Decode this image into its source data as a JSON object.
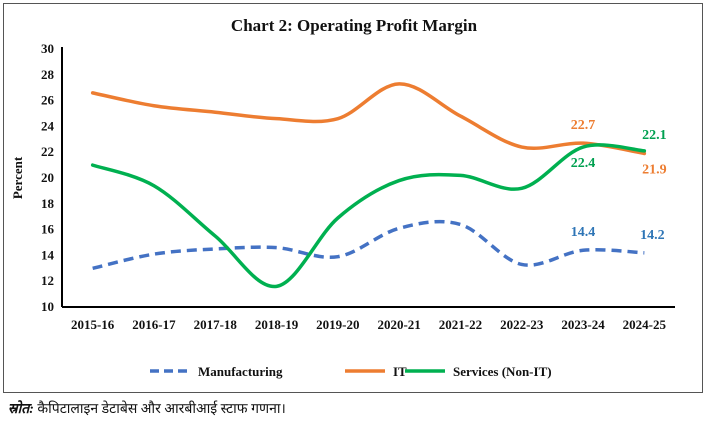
{
  "chart_data": {
    "type": "line",
    "title": "Chart 2: Operating Profit Margin",
    "ylabel": "Percent",
    "xlabel": "",
    "ylim": [
      10,
      30
    ],
    "ytick_step": 2,
    "grid": false,
    "legend_placement": "bottom",
    "categories": [
      "2015-16",
      "2016-17",
      "2017-18",
      "2018-19",
      "2019-20",
      "2020-21",
      "2021-22",
      "2022-23",
      "2023-24",
      "2024-25"
    ],
    "series": [
      {
        "name": "Manufacturing",
        "color": "#4472C4",
        "dash": true,
        "values": [
          13.0,
          14.1,
          14.5,
          14.6,
          13.9,
          16.1,
          16.4,
          13.3,
          14.4,
          14.2
        ],
        "labels": {
          "8": "14.4",
          "9": "14.2"
        },
        "label_color": "#2E75B6"
      },
      {
        "name": "IT",
        "color": "#ED7D31",
        "dash": false,
        "values": [
          26.6,
          25.6,
          25.1,
          24.6,
          24.6,
          27.3,
          24.8,
          22.4,
          22.7,
          21.9
        ],
        "labels": {
          "8": "22.7",
          "9": "21.9"
        },
        "label_color": "#ED7D31"
      },
      {
        "name": "Services (Non-IT)",
        "color": "#00B050",
        "dash": false,
        "values": [
          21.0,
          19.4,
          15.5,
          11.6,
          16.9,
          19.8,
          20.2,
          19.2,
          22.4,
          22.1
        ],
        "labels": {
          "8": "22.4",
          "9": "22.1"
        },
        "label_color": "#00A050"
      }
    ]
  },
  "source": {
    "prefix": "स्रोत:",
    "text": " कैपिटालाइन डेटाबेस और आरबीआई स्टाफ गणना।"
  }
}
